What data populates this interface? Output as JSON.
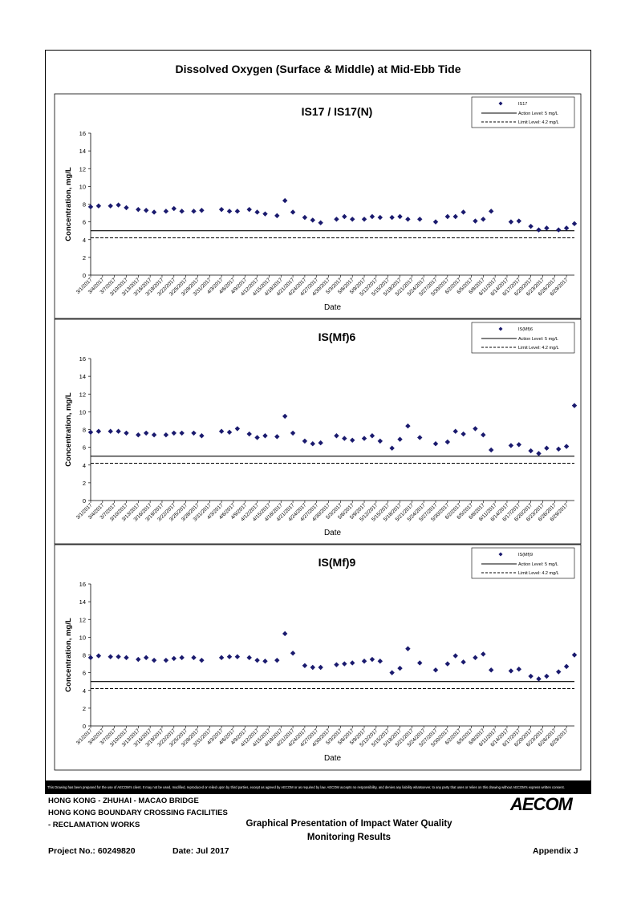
{
  "page_title": "Dissolved Oxygen (Surface & Middle) at Mid-Ebb Tide",
  "disclaimer": "This Drawing has been prepared for the use of AECOM's client. It may not be used, modified, reproduced or relied upon by third parties, except as agreed by AECOM or as required by law. AECOM accepts no responsibility, and denies any liability whatsoever, to any party that uses or relies on this drawing without AECOM's express written consent.",
  "footer": {
    "line1": "HONG KONG - ZHUHAI - MACAO BRIDGE",
    "line2": "HONG KONG BOUNDARY CROSSING FACILITIES",
    "line3": "- RECLAMATION WORKS",
    "center_title_1": "Graphical Presentation of Impact Water Quality",
    "center_title_2": "Monitoring Results",
    "project_no": "Project No.: 60249820",
    "date": "Date: Jul 2017",
    "appendix": "Appendix J",
    "logo": "AECOM"
  },
  "colors": {
    "marker": "#1a1a6e",
    "axis": "#000000",
    "text": "#000000"
  },
  "chart_data": [
    {
      "type": "scatter",
      "title": "IS17 / IS17(N)",
      "xlabel": "Date",
      "ylabel": "Concentration, mg/L",
      "ylim": [
        0,
        16
      ],
      "yticks": [
        "0",
        "2",
        "4",
        "6",
        "8",
        "10",
        "12",
        "14",
        "16"
      ],
      "xticks": [
        "3/1/2017",
        "3/4/2017",
        "3/7/2017",
        "3/10/2017",
        "3/13/2017",
        "3/16/2017",
        "3/19/2017",
        "3/22/2017",
        "3/25/2017",
        "3/28/2017",
        "3/31/2017",
        "4/3/2017",
        "4/6/2017",
        "4/9/2017",
        "4/12/2017",
        "4/15/2017",
        "4/18/2017",
        "4/21/2017",
        "4/24/2017",
        "4/27/2017",
        "4/30/2017",
        "5/3/2017",
        "5/6/2017",
        "5/9/2017",
        "5/12/2017",
        "5/15/2017",
        "5/18/2017",
        "5/21/2017",
        "5/24/2017",
        "5/27/2017",
        "5/30/2017",
        "6/2/2017",
        "6/5/2017",
        "6/8/2017",
        "6/11/2017",
        "6/14/2017",
        "6/17/2017",
        "6/20/2017",
        "6/23/2017",
        "6/26/2017",
        "6/29/2017"
      ],
      "legend": {
        "position": "top-right",
        "entries": [
          "IS17",
          "Action Level: 5 mg/L",
          "Limit Level: 4.2 mg/L"
        ]
      },
      "action_level": 5,
      "limit_level": 4.2,
      "points": [
        [
          "3/1/2017",
          7.7
        ],
        [
          "3/3/2017",
          7.8
        ],
        [
          "3/6/2017",
          7.8
        ],
        [
          "3/8/2017",
          7.9
        ],
        [
          "3/10/2017",
          7.6
        ],
        [
          "3/13/2017",
          7.4
        ],
        [
          "3/15/2017",
          7.3
        ],
        [
          "3/17/2017",
          7.1
        ],
        [
          "3/20/2017",
          7.2
        ],
        [
          "3/22/2017",
          7.5
        ],
        [
          "3/24/2017",
          7.2
        ],
        [
          "3/27/2017",
          7.2
        ],
        [
          "3/29/2017",
          7.3
        ],
        [
          "4/3/2017",
          7.4
        ],
        [
          "4/5/2017",
          7.2
        ],
        [
          "4/7/2017",
          7.2
        ],
        [
          "4/10/2017",
          7.4
        ],
        [
          "4/12/2017",
          7.1
        ],
        [
          "4/14/2017",
          6.9
        ],
        [
          "4/17/2017",
          6.7
        ],
        [
          "4/19/2017",
          8.4
        ],
        [
          "4/21/2017",
          7.1
        ],
        [
          "4/24/2017",
          6.5
        ],
        [
          "4/26/2017",
          6.2
        ],
        [
          "4/28/2017",
          5.9
        ],
        [
          "5/2/2017",
          6.3
        ],
        [
          "5/4/2017",
          6.6
        ],
        [
          "5/6/2017",
          6.3
        ],
        [
          "5/9/2017",
          6.3
        ],
        [
          "5/11/2017",
          6.6
        ],
        [
          "5/13/2017",
          6.5
        ],
        [
          "5/16/2017",
          6.5
        ],
        [
          "5/18/2017",
          6.6
        ],
        [
          "5/20/2017",
          6.3
        ],
        [
          "5/23/2017",
          6.3
        ],
        [
          "5/27/2017",
          6.0
        ],
        [
          "5/30/2017",
          6.6
        ],
        [
          "6/1/2017",
          6.6
        ],
        [
          "6/3/2017",
          7.1
        ],
        [
          "6/6/2017",
          6.1
        ],
        [
          "6/8/2017",
          6.3
        ],
        [
          "6/10/2017",
          7.2
        ],
        [
          "6/15/2017",
          6.0
        ],
        [
          "6/17/2017",
          6.1
        ],
        [
          "6/20/2017",
          5.5
        ],
        [
          "6/22/2017",
          5.1
        ],
        [
          "6/24/2017",
          5.3
        ],
        [
          "6/27/2017",
          5.1
        ],
        [
          "6/29/2017",
          5.3
        ],
        [
          "7/1/2017",
          5.8
        ]
      ]
    },
    {
      "type": "scatter",
      "title": "IS(Mf)6",
      "xlabel": "Date",
      "ylabel": "Concentration, mg/L",
      "ylim": [
        0,
        16
      ],
      "yticks": [
        "0",
        "2",
        "4",
        "6",
        "8",
        "10",
        "12",
        "14",
        "16"
      ],
      "xticks": [
        "3/1/2017",
        "3/4/2017",
        "3/7/2017",
        "3/10/2017",
        "3/13/2017",
        "3/16/2017",
        "3/19/2017",
        "3/22/2017",
        "3/25/2017",
        "3/28/2017",
        "3/31/2017",
        "4/3/2017",
        "4/6/2017",
        "4/9/2017",
        "4/12/2017",
        "4/15/2017",
        "4/18/2017",
        "4/21/2017",
        "4/24/2017",
        "4/27/2017",
        "4/30/2017",
        "5/3/2017",
        "5/6/2017",
        "5/9/2017",
        "5/12/2017",
        "5/15/2017",
        "5/18/2017",
        "5/21/2017",
        "5/24/2017",
        "5/27/2017",
        "5/30/2017",
        "6/2/2017",
        "6/5/2017",
        "6/8/2017",
        "6/11/2017",
        "6/14/2017",
        "6/17/2017",
        "6/20/2017",
        "6/23/2017",
        "6/26/2017",
        "6/29/2017"
      ],
      "legend": {
        "position": "top-right",
        "entries": [
          "IS(Mf)6",
          "Action Level: 5 mg/L",
          "Limit Level: 4.2 mg/L"
        ]
      },
      "action_level": 5,
      "limit_level": 4.2,
      "points": [
        [
          "3/1/2017",
          7.7
        ],
        [
          "3/3/2017",
          7.8
        ],
        [
          "3/6/2017",
          7.8
        ],
        [
          "3/8/2017",
          7.8
        ],
        [
          "3/10/2017",
          7.6
        ],
        [
          "3/13/2017",
          7.4
        ],
        [
          "3/15/2017",
          7.6
        ],
        [
          "3/17/2017",
          7.4
        ],
        [
          "3/20/2017",
          7.4
        ],
        [
          "3/22/2017",
          7.6
        ],
        [
          "3/24/2017",
          7.6
        ],
        [
          "3/27/2017",
          7.6
        ],
        [
          "3/29/2017",
          7.3
        ],
        [
          "4/3/2017",
          7.8
        ],
        [
          "4/5/2017",
          7.7
        ],
        [
          "4/7/2017",
          8.1
        ],
        [
          "4/10/2017",
          7.5
        ],
        [
          "4/12/2017",
          7.1
        ],
        [
          "4/14/2017",
          7.3
        ],
        [
          "4/17/2017",
          7.2
        ],
        [
          "4/19/2017",
          9.5
        ],
        [
          "4/21/2017",
          7.6
        ],
        [
          "4/24/2017",
          6.7
        ],
        [
          "4/26/2017",
          6.4
        ],
        [
          "4/28/2017",
          6.5
        ],
        [
          "5/2/2017",
          7.3
        ],
        [
          "5/4/2017",
          7.0
        ],
        [
          "5/6/2017",
          6.8
        ],
        [
          "5/9/2017",
          7.0
        ],
        [
          "5/11/2017",
          7.3
        ],
        [
          "5/13/2017",
          6.7
        ],
        [
          "5/16/2017",
          5.9
        ],
        [
          "5/18/2017",
          6.9
        ],
        [
          "5/20/2017",
          8.4
        ],
        [
          "5/23/2017",
          7.1
        ],
        [
          "5/27/2017",
          6.4
        ],
        [
          "5/30/2017",
          6.6
        ],
        [
          "6/1/2017",
          7.8
        ],
        [
          "6/3/2017",
          7.5
        ],
        [
          "6/6/2017",
          8.1
        ],
        [
          "6/8/2017",
          7.4
        ],
        [
          "6/10/2017",
          5.7
        ],
        [
          "6/15/2017",
          6.2
        ],
        [
          "6/17/2017",
          6.3
        ],
        [
          "6/20/2017",
          5.6
        ],
        [
          "6/22/2017",
          5.3
        ],
        [
          "6/24/2017",
          5.9
        ],
        [
          "6/27/2017",
          5.8
        ],
        [
          "6/29/2017",
          6.1
        ],
        [
          "7/1/2017",
          10.7
        ]
      ]
    },
    {
      "type": "scatter",
      "title": "IS(Mf)9",
      "xlabel": "Date",
      "ylabel": "Concentration, mg/L",
      "ylim": [
        0,
        16
      ],
      "yticks": [
        "0",
        "2",
        "4",
        "6",
        "8",
        "10",
        "12",
        "14",
        "16"
      ],
      "xticks": [
        "3/1/2017",
        "3/4/2017",
        "3/7/2017",
        "3/10/2017",
        "3/13/2017",
        "3/16/2017",
        "3/19/2017",
        "3/22/2017",
        "3/25/2017",
        "3/28/2017",
        "3/31/2017",
        "4/3/2017",
        "4/6/2017",
        "4/9/2017",
        "4/12/2017",
        "4/15/2017",
        "4/18/2017",
        "4/21/2017",
        "4/24/2017",
        "4/27/2017",
        "4/30/2017",
        "5/3/2017",
        "5/6/2017",
        "5/9/2017",
        "5/12/2017",
        "5/15/2017",
        "5/18/2017",
        "5/21/2017",
        "5/24/2017",
        "5/27/2017",
        "5/30/2017",
        "6/2/2017",
        "6/5/2017",
        "6/8/2017",
        "6/11/2017",
        "6/14/2017",
        "6/17/2017",
        "6/20/2017",
        "6/23/2017",
        "6/26/2017",
        "6/29/2017"
      ],
      "legend": {
        "position": "top-right",
        "entries": [
          "IS(Mf)9",
          "Action Level: 5 mg/L",
          "Limit Level: 4.2 mg/L"
        ]
      },
      "action_level": 5,
      "limit_level": 4.2,
      "points": [
        [
          "3/1/2017",
          7.7
        ],
        [
          "3/3/2017",
          7.9
        ],
        [
          "3/6/2017",
          7.8
        ],
        [
          "3/8/2017",
          7.8
        ],
        [
          "3/10/2017",
          7.7
        ],
        [
          "3/13/2017",
          7.5
        ],
        [
          "3/15/2017",
          7.7
        ],
        [
          "3/17/2017",
          7.4
        ],
        [
          "3/20/2017",
          7.4
        ],
        [
          "3/22/2017",
          7.6
        ],
        [
          "3/24/2017",
          7.7
        ],
        [
          "3/27/2017",
          7.7
        ],
        [
          "3/29/2017",
          7.4
        ],
        [
          "4/3/2017",
          7.7
        ],
        [
          "4/5/2017",
          7.8
        ],
        [
          "4/7/2017",
          7.8
        ],
        [
          "4/10/2017",
          7.7
        ],
        [
          "4/12/2017",
          7.4
        ],
        [
          "4/14/2017",
          7.3
        ],
        [
          "4/17/2017",
          7.4
        ],
        [
          "4/19/2017",
          10.4
        ],
        [
          "4/21/2017",
          8.2
        ],
        [
          "4/24/2017",
          6.8
        ],
        [
          "4/26/2017",
          6.6
        ],
        [
          "4/28/2017",
          6.6
        ],
        [
          "5/2/2017",
          6.9
        ],
        [
          "5/4/2017",
          7.0
        ],
        [
          "5/6/2017",
          7.1
        ],
        [
          "5/9/2017",
          7.3
        ],
        [
          "5/11/2017",
          7.5
        ],
        [
          "5/13/2017",
          7.3
        ],
        [
          "5/16/2017",
          6.0
        ],
        [
          "5/18/2017",
          6.5
        ],
        [
          "5/20/2017",
          8.7
        ],
        [
          "5/23/2017",
          7.1
        ],
        [
          "5/27/2017",
          6.3
        ],
        [
          "5/30/2017",
          7.0
        ],
        [
          "6/1/2017",
          7.9
        ],
        [
          "6/3/2017",
          7.2
        ],
        [
          "6/6/2017",
          7.7
        ],
        [
          "6/8/2017",
          8.1
        ],
        [
          "6/10/2017",
          6.3
        ],
        [
          "6/15/2017",
          6.2
        ],
        [
          "6/17/2017",
          6.4
        ],
        [
          "6/20/2017",
          5.6
        ],
        [
          "6/22/2017",
          5.3
        ],
        [
          "6/24/2017",
          5.6
        ],
        [
          "6/27/2017",
          6.1
        ],
        [
          "6/29/2017",
          6.7
        ],
        [
          "7/1/2017",
          8.0
        ]
      ]
    }
  ]
}
